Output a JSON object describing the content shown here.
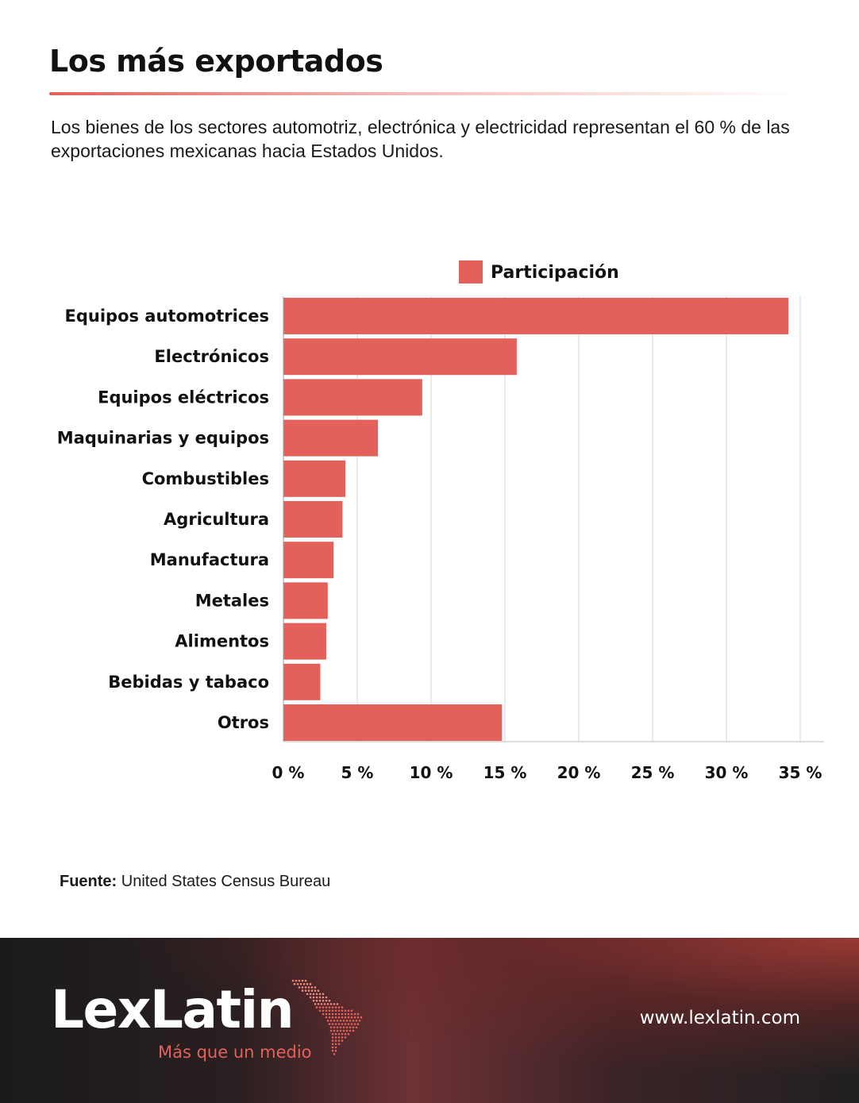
{
  "header": {
    "title": "Los más exportados",
    "subtitle": "Los bienes de los sectores automotriz, electrónica y electricidad representan el 60 % de las exportaciones mexicanas hacia Estados Unidos."
  },
  "chart_data": {
    "type": "bar",
    "orientation": "horizontal",
    "categories": [
      "Equipos automotrices",
      "Electrónicos",
      "Equipos eléctricos",
      "Maquinarias y equipos",
      "Combustibles",
      "Agricultura",
      "Manufactura",
      "Metales",
      "Alimentos",
      "Bebidas y tabaco",
      "Otros"
    ],
    "series": [
      {
        "name": "Participación",
        "color": "#e3615a",
        "values": [
          34.2,
          15.8,
          9.4,
          6.4,
          4.2,
          4.0,
          3.4,
          3.0,
          2.9,
          2.5,
          14.8
        ]
      }
    ],
    "xlim": [
      0,
      35
    ],
    "xticks": [
      0,
      5,
      10,
      15,
      20,
      25,
      30,
      35
    ],
    "xtick_labels": [
      "0 %",
      "5 %",
      "10 %",
      "15 %",
      "20 %",
      "25 %",
      "30 %",
      "35 %"
    ],
    "grid": "vertical",
    "legend": "top-center"
  },
  "source": {
    "label": "Fuente:",
    "text": " United States Census Bureau"
  },
  "footer": {
    "brand": "LexLatin",
    "tagline": "Más que un medio",
    "website": "www.lexlatin.com"
  },
  "colors": {
    "accent": "#e3615a",
    "footer_dark": "#1b1b1c",
    "footer_red": "#a03a34"
  },
  "icons": {
    "logo_mark": "latin-america-map-icon"
  }
}
